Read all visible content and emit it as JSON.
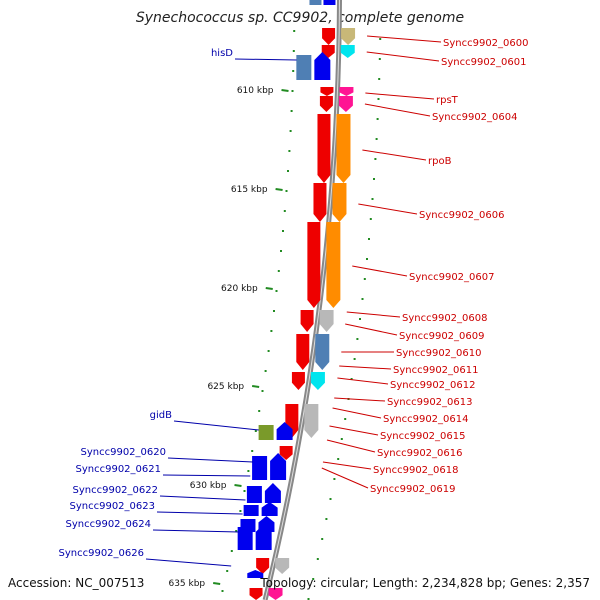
{
  "title": "Synechococcus sp. CC9902, complete genome",
  "footer": {
    "accession": "Accession: NC_007513",
    "summary": "Topology: circular; Length: 2,234,828 bp; Genes: 2,357"
  },
  "ticks": [
    "610 kbp",
    "615 kbp",
    "620 kbp",
    "625 kbp",
    "630 kbp",
    "635 kbp"
  ],
  "forward_labels": [
    "Syncc9902_0600",
    "Syncc9902_0601",
    "rpsT",
    "Syncc9902_0604",
    "rpoB",
    "Syncc9902_0606",
    "Syncc9902_0607",
    "Syncc9902_0608",
    "Syncc9902_0609",
    "Syncc9902_0610",
    "Syncc9902_0611",
    "Syncc9902_0612",
    "Syncc9902_0613",
    "Syncc9902_0614",
    "Syncc9902_0615",
    "Syncc9902_0616",
    "Syncc9902_0618",
    "Syncc9902_0619"
  ],
  "reverse_labels": [
    "hisD",
    "gidB",
    "Syncc9902_0620",
    "Syncc9902_0621",
    "Syncc9902_0622",
    "Syncc9902_0623",
    "Syncc9902_0624",
    "Syncc9902_0626"
  ],
  "colors": {
    "forward_label": "#cc0000",
    "reverse_label": "#0000aa",
    "tick": "#228b22",
    "backbone": "#888888",
    "red": "#ee0000",
    "orange": "#ff8c00",
    "blue": "#0000ee",
    "steel": "#4f7fb4",
    "cyan": "#00e5ee",
    "pink": "#ff1493",
    "olive": "#7a9a2a",
    "gray": "#b8b8b8",
    "khaki": "#c8b878"
  }
}
